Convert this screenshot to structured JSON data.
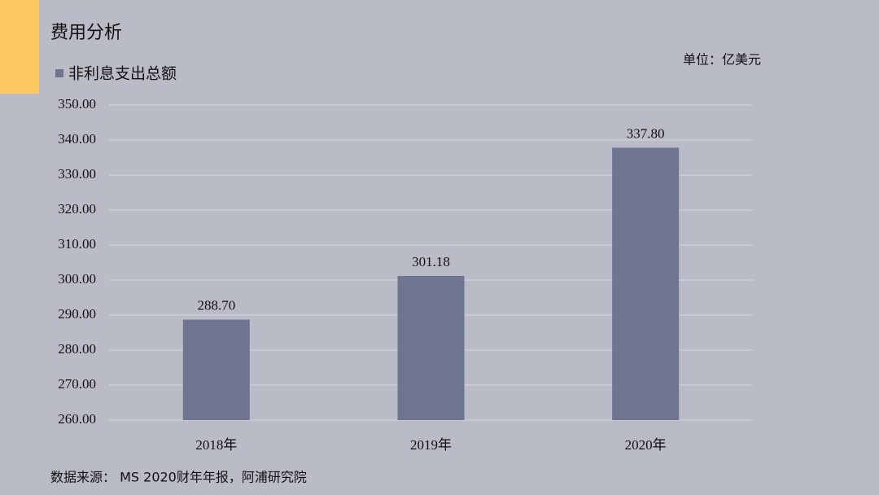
{
  "chart_data": {
    "type": "bar",
    "title": "费用分析",
    "unit": "单位：亿美元",
    "source": "数据来源： MS 2020财年年报，阿浦研究院",
    "categories": [
      "2018年",
      "2019年",
      "2020年"
    ],
    "series": [
      {
        "name": "非利息支出总额",
        "color": "#6f7590",
        "values": [
          288.7,
          301.18,
          337.8
        ],
        "value_labels": [
          "288.70",
          "301.18",
          "337.80"
        ]
      }
    ],
    "ylim": [
      260,
      350
    ],
    "yticks": [
      {
        "value": 260,
        "label": "260.00"
      },
      {
        "value": 270,
        "label": "270.00"
      },
      {
        "value": 280,
        "label": "280.00"
      },
      {
        "value": 290,
        "label": "290.00"
      },
      {
        "value": 300,
        "label": "300.00"
      },
      {
        "value": 310,
        "label": "310.00"
      },
      {
        "value": 320,
        "label": "320.00"
      },
      {
        "value": 330,
        "label": "330.00"
      },
      {
        "value": 340,
        "label": "340.00"
      },
      {
        "value": 350,
        "label": "350.00"
      }
    ],
    "grid": true
  }
}
